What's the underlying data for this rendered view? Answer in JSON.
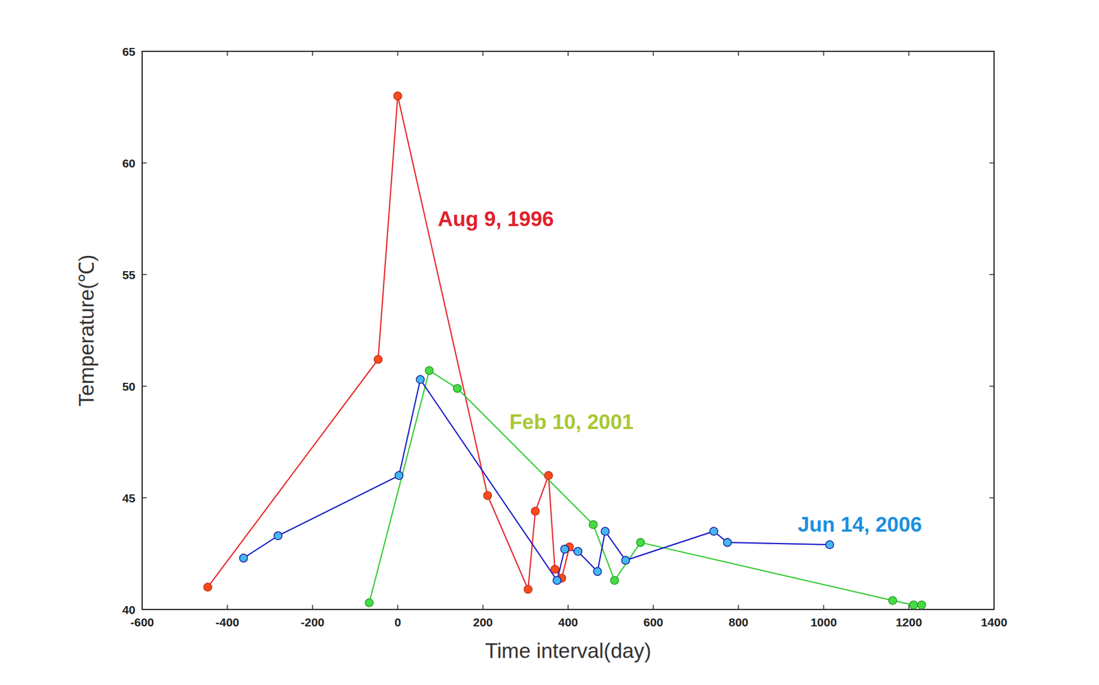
{
  "chart_data": {
    "type": "line",
    "x_label": "Time interval(day)",
    "y_label": "Temperature(℃)",
    "xlim": [
      -600,
      1400
    ],
    "xticks": [
      -600,
      -400,
      -200,
      0,
      200,
      400,
      600,
      800,
      1000,
      1200,
      1400
    ],
    "ylim": [
      40,
      65
    ],
    "yticks": [
      40,
      45,
      50,
      55,
      60,
      65
    ],
    "grid": false,
    "marker": "circle",
    "series": [
      {
        "name": "Aug 9, 1996",
        "color": "#e8262a",
        "x": [
          -446,
          -46,
          0,
          211,
          306,
          323,
          354,
          369,
          385,
          403
        ],
        "values": [
          41.0,
          51.2,
          63.0,
          45.1,
          40.9,
          44.4,
          46.0,
          41.8,
          41.4,
          42.8
        ]
      },
      {
        "name": "Feb 10, 2001",
        "color": "#33cc33",
        "x": [
          -67,
          74,
          140,
          459,
          509,
          570,
          1162,
          1211,
          1230
        ],
        "values": [
          40.3,
          50.7,
          49.9,
          43.8,
          41.3,
          43.0,
          40.4,
          40.2,
          40.2
        ]
      },
      {
        "name": "Jun 14, 2006",
        "color": "#1a1acc",
        "x": [
          -362,
          -281,
          3,
          53,
          374,
          392,
          423,
          469,
          487,
          535,
          742,
          774,
          1014
        ],
        "values": [
          42.3,
          43.3,
          46.0,
          50.3,
          41.3,
          42.7,
          42.6,
          41.7,
          43.5,
          42.2,
          43.5,
          43.0,
          42.9
        ]
      }
    ]
  }
}
